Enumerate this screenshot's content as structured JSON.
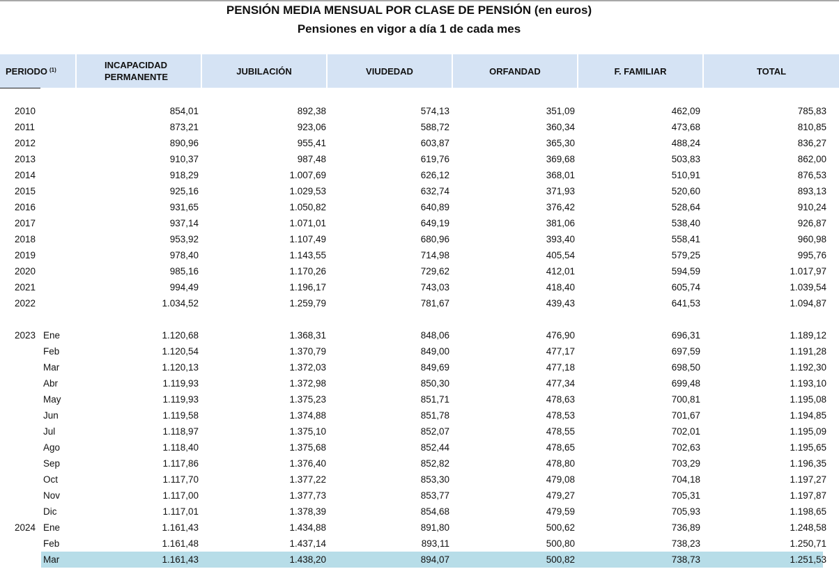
{
  "title": "PENSIÓN MEDIA MENSUAL POR CLASE DE PENSIÓN (en euros)",
  "subtitle": "Pensiones en vigor a día 1 de cada mes",
  "columns": {
    "periodo": "PERIODO",
    "periodo_note": "(1)",
    "incapacidad_1": "INCAPACIDAD",
    "incapacidad_2": "PERMANENTE",
    "jubilacion": "JUBILACIÓN",
    "viudedad": "VIUDEDAD",
    "orfandad": "ORFANDAD",
    "familiar": "F. FAMILIAR",
    "total": "TOTAL"
  },
  "highlight_color": "#b7dde8",
  "header_color": "#d5e3f4",
  "annual_rows": [
    {
      "year": "2010",
      "values": [
        "854,01",
        "892,38",
        "574,13",
        "351,09",
        "462,09",
        "785,83"
      ]
    },
    {
      "year": "2011",
      "values": [
        "873,21",
        "923,06",
        "588,72",
        "360,34",
        "473,68",
        "810,85"
      ]
    },
    {
      "year": "2012",
      "values": [
        "890,96",
        "955,41",
        "603,87",
        "365,30",
        "488,24",
        "836,27"
      ]
    },
    {
      "year": "2013",
      "values": [
        "910,37",
        "987,48",
        "619,76",
        "369,68",
        "503,83",
        "862,00"
      ]
    },
    {
      "year": "2014",
      "values": [
        "918,29",
        "1.007,69",
        "626,12",
        "368,01",
        "510,91",
        "876,53"
      ]
    },
    {
      "year": "2015",
      "values": [
        "925,16",
        "1.029,53",
        "632,74",
        "371,93",
        "520,60",
        "893,13"
      ]
    },
    {
      "year": "2016",
      "values": [
        "931,65",
        "1.050,82",
        "640,89",
        "376,42",
        "528,64",
        "910,24"
      ]
    },
    {
      "year": "2017",
      "values": [
        "937,14",
        "1.071,01",
        "649,19",
        "381,06",
        "538,40",
        "926,87"
      ]
    },
    {
      "year": "2018",
      "values": [
        "953,92",
        "1.107,49",
        "680,96",
        "393,40",
        "558,41",
        "960,98"
      ]
    },
    {
      "year": "2019",
      "values": [
        "978,40",
        "1.143,55",
        "714,98",
        "405,54",
        "579,25",
        "995,76"
      ]
    },
    {
      "year": "2020",
      "values": [
        "985,16",
        "1.170,26",
        "729,62",
        "412,01",
        "594,59",
        "1.017,97"
      ]
    },
    {
      "year": "2021",
      "values": [
        "994,49",
        "1.196,17",
        "743,03",
        "418,40",
        "605,74",
        "1.039,54"
      ]
    },
    {
      "year": "2022",
      "values": [
        "1.034,52",
        "1.259,79",
        "781,67",
        "439,43",
        "641,53",
        "1.094,87"
      ]
    }
  ],
  "monthly_rows": [
    {
      "year": "2023",
      "month": "Ene",
      "values": [
        "1.120,68",
        "1.368,31",
        "848,06",
        "476,90",
        "696,31",
        "1.189,12"
      ]
    },
    {
      "year": "",
      "month": "Feb",
      "values": [
        "1.120,54",
        "1.370,79",
        "849,00",
        "477,17",
        "697,59",
        "1.191,28"
      ]
    },
    {
      "year": "",
      "month": "Mar",
      "values": [
        "1.120,13",
        "1.372,03",
        "849,69",
        "477,18",
        "698,50",
        "1.192,30"
      ]
    },
    {
      "year": "",
      "month": "Abr",
      "values": [
        "1.119,93",
        "1.372,98",
        "850,30",
        "477,34",
        "699,48",
        "1.193,10"
      ]
    },
    {
      "year": "",
      "month": "May",
      "values": [
        "1.119,93",
        "1.375,23",
        "851,71",
        "478,63",
        "700,81",
        "1.195,08"
      ]
    },
    {
      "year": "",
      "month": "Jun",
      "values": [
        "1.119,58",
        "1.374,88",
        "851,78",
        "478,53",
        "701,67",
        "1.194,85"
      ]
    },
    {
      "year": "",
      "month": "Jul",
      "values": [
        "1.118,97",
        "1.375,10",
        "852,07",
        "478,55",
        "702,01",
        "1.195,09"
      ]
    },
    {
      "year": "",
      "month": "Ago",
      "values": [
        "1.118,40",
        "1.375,68",
        "852,44",
        "478,65",
        "702,63",
        "1.195,65"
      ]
    },
    {
      "year": "",
      "month": "Sep",
      "values": [
        "1.117,86",
        "1.376,40",
        "852,82",
        "478,80",
        "703,29",
        "1.196,35"
      ]
    },
    {
      "year": "",
      "month": "Oct",
      "values": [
        "1.117,70",
        "1.377,22",
        "853,30",
        "479,08",
        "704,18",
        "1.197,27"
      ]
    },
    {
      "year": "",
      "month": "Nov",
      "values": [
        "1.117,00",
        "1.377,73",
        "853,77",
        "479,27",
        "705,31",
        "1.197,87"
      ]
    },
    {
      "year": "",
      "month": "Dic",
      "values": [
        "1.117,01",
        "1.378,39",
        "854,68",
        "479,59",
        "705,93",
        "1.198,65"
      ]
    },
    {
      "year": "2024",
      "month": "Ene",
      "values": [
        "1.161,43",
        "1.434,88",
        "891,80",
        "500,62",
        "736,89",
        "1.248,58"
      ]
    },
    {
      "year": "",
      "month": "Feb",
      "values": [
        "1.161,48",
        "1.437,14",
        "893,11",
        "500,80",
        "738,23",
        "1.250,71"
      ]
    },
    {
      "year": "",
      "month": "Mar",
      "highlighted": true,
      "values": [
        "1.161,43",
        "1.438,20",
        "894,07",
        "500,82",
        "738,73",
        "1.251,53"
      ]
    }
  ]
}
